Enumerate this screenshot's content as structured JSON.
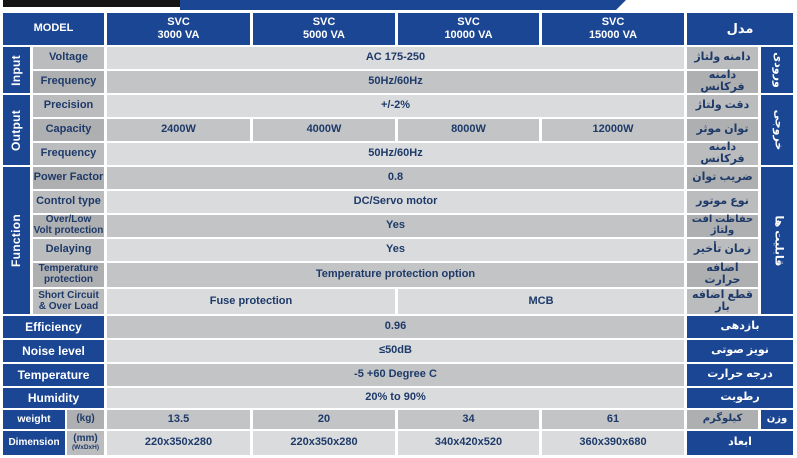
{
  "colors": {
    "brand_blue": "#1b4693",
    "bar_black": "#141414",
    "row_light": "#dadbdd",
    "row_dark": "#c3c4c6",
    "label_light": "#bbbcbe",
    "label_dark": "#aeafb1",
    "text_navy": "#1e3a69"
  },
  "header": {
    "model_en": "MODEL",
    "model_fa": "مدل",
    "cols": [
      {
        "l1": "SVC",
        "l2": "3000 VA"
      },
      {
        "l1": "SVC",
        "l2": "5000 VA"
      },
      {
        "l1": "SVC",
        "l2": "10000 VA"
      },
      {
        "l1": "SVC",
        "l2": "15000 VA"
      }
    ]
  },
  "sections": {
    "left": [
      {
        "label": "Input"
      },
      {
        "label": "Output"
      },
      {
        "label": "Function"
      }
    ],
    "right": [
      {
        "label": "ورودی"
      },
      {
        "label": "خروجی"
      },
      {
        "label": "قابلیت ها"
      }
    ]
  },
  "rows": [
    {
      "label": "Voltage",
      "fa": "دامنه ولتاژ",
      "value": "AC 175-250"
    },
    {
      "label": "Frequency",
      "fa": "دامنه فرکانس",
      "value": "50Hz/60Hz"
    },
    {
      "label": "Precision",
      "fa": "دقت ولتاژ",
      "value": "+/-2%"
    },
    {
      "label": "Capacity",
      "fa": "توان موثر",
      "values": [
        "2400W",
        "4000W",
        "8000W",
        "12000W"
      ]
    },
    {
      "label": "Frequency",
      "fa": "دامنه فرکانس",
      "value": "50Hz/60Hz"
    },
    {
      "label": "Power Factor",
      "fa": "ضریب توان",
      "value": "0.8"
    },
    {
      "label": "Control type",
      "fa": "نوع موتور",
      "value": "DC/Servo motor"
    },
    {
      "l1": "Over/Low",
      "l2": "Volt protection",
      "fa": "حفاظت افت ولتاژ",
      "value": "Yes"
    },
    {
      "label": "Delaying",
      "fa": "زمان تأخیر",
      "value": "Yes"
    },
    {
      "l1": "Temperature",
      "l2": "protection",
      "fa": "اضافه حرارت",
      "value": "Temperature protection option"
    },
    {
      "l1": "Short Circuit",
      "l2": "& Over Load",
      "fa": "قطع اضافه بار",
      "value_left": "Fuse protection",
      "value_right": "MCB"
    },
    {
      "label": "Efficiency",
      "fa": "بازدهی",
      "value": "0.96"
    },
    {
      "label": "Noise level",
      "fa": "نویز صوتی",
      "value": "≤50dB"
    },
    {
      "label": "Temperature",
      "fa": "درجه حرارت",
      "value": "-5 +60 Degree C"
    },
    {
      "label": "Humidity",
      "fa": "رطوبت",
      "value": "20% to 90%"
    },
    {
      "label": "weight",
      "unit": "(kg)",
      "fa": "وزن",
      "unit_fa": "کیلوگرم",
      "values": [
        "13.5",
        "20",
        "34",
        "61"
      ]
    },
    {
      "label": "Dimension",
      "unit": "(mm)",
      "unit_note": "(WxDxH)",
      "fa": "ابعاد",
      "values": [
        "220x350x280",
        "220x350x280",
        "340x420x520",
        "360x390x680"
      ]
    }
  ]
}
